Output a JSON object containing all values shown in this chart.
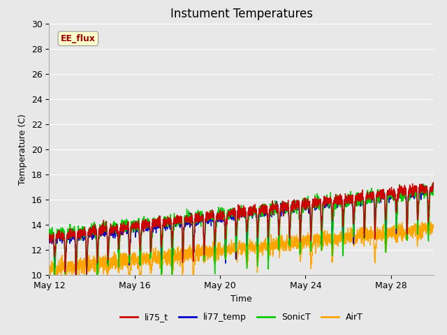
{
  "title": "Instument Temperatures",
  "xlabel": "Time",
  "ylabel": "Temperature (C)",
  "ylim": [
    10,
    30
  ],
  "xlim_days": [
    0,
    18
  ],
  "xtick_labels": [
    "May 12",
    "May 16",
    "May 20",
    "May 24",
    "May 28"
  ],
  "xtick_positions": [
    0,
    4,
    8,
    12,
    16
  ],
  "colors": {
    "li75_t": "#cc0000",
    "li77_temp": "#0000cc",
    "SonicT": "#00cc00",
    "AirT": "#ffa500"
  },
  "legend_labels": [
    "li75_t",
    "li77_temp",
    "SonicT",
    "AirT"
  ],
  "annotation_text": "EE_flux",
  "annotation_color": "#990000",
  "annotation_bg": "#ffffcc",
  "bg_color": "#e8e8e8",
  "plot_bg": "#e8e8e8",
  "grid_color": "#ffffff",
  "linewidth": 1.0,
  "title_fontsize": 12,
  "axis_fontsize": 9,
  "tick_fontsize": 9,
  "legend_fontsize": 9
}
